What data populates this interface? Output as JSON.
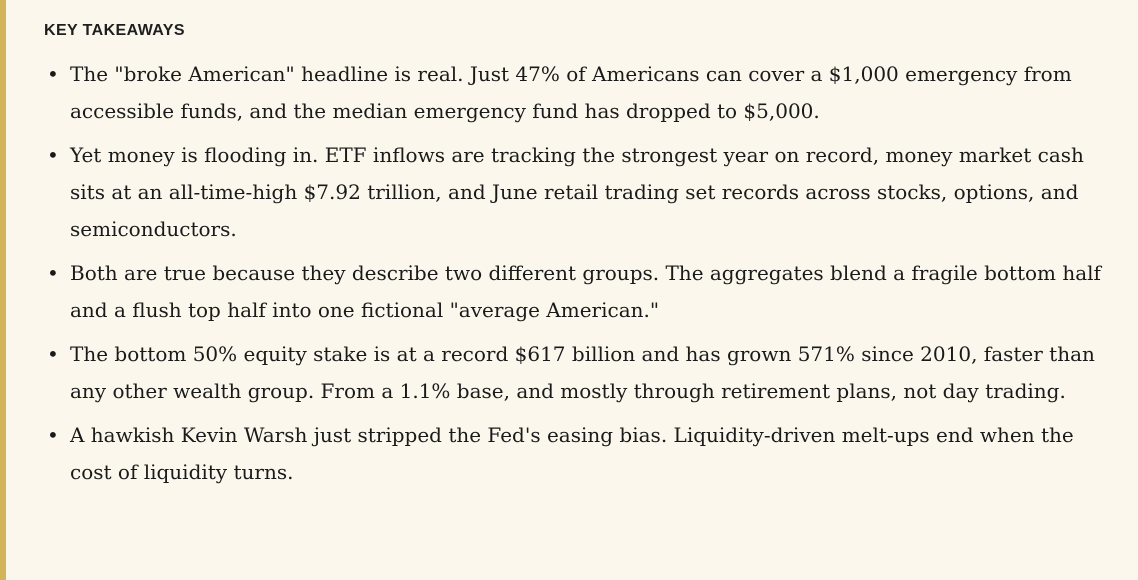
{
  "key_takeaways": {
    "heading": "KEY TAKEAWAYS",
    "bullet_glyph": "•",
    "items": [
      {
        "text": "The \"broke American\" headline is real. Just 47% of Americans can cover a $1,000 emergency from accessible funds, and the median emergency fund has dropped to $5,000."
      },
      {
        "text": "Yet money is flooding in. ETF inflows are tracking the strongest year on record, money market cash sits at an all-time-high $7.92 trillion, and June retail trading set records across stocks, options, and semiconductors."
      },
      {
        "text": "Both are true because they describe two different groups. The aggregates blend a fragile bottom half and a flush top half into one fictional \"average American.\""
      },
      {
        "text": "The bottom 50% equity stake is at a record $617 billion and has grown 571% since 2010, faster than any other wealth group. From a 1.1% base, and mostly through retirement plans, not day trading."
      },
      {
        "text": "A hawkish Kevin Warsh just stripped the Fed's easing bias. Liquidity-driven melt-ups end when the cost of liquidity turns."
      }
    ]
  },
  "colors": {
    "background": "#fbf7ec",
    "accent_bar": "#d2b55b",
    "text": "#1a1a1a"
  }
}
